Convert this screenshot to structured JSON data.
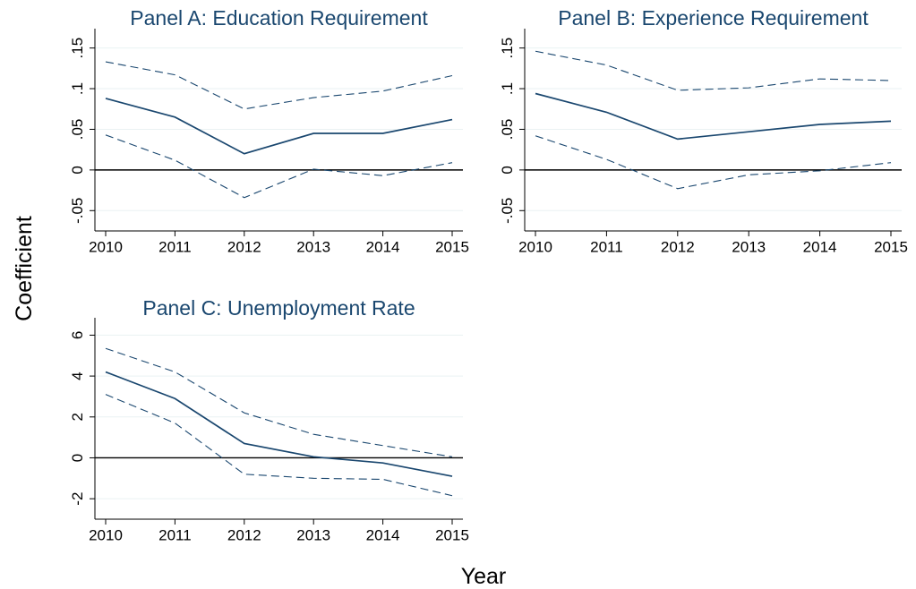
{
  "y_label": "Coefficient",
  "x_label": "Year",
  "chart_data": [
    {
      "type": "line",
      "title": "Panel A: Education Requirement",
      "x": [
        2010,
        2011,
        2012,
        2013,
        2014,
        2015
      ],
      "series": [
        {
          "color": "#1a476f",
          "style": "solid",
          "values": [
            0.088,
            0.065,
            0.02,
            0.045,
            0.045,
            0.062
          ]
        },
        {
          "color": "#1a476f",
          "style": "dashed",
          "values": [
            0.133,
            0.117,
            0.075,
            0.089,
            0.097,
            0.116
          ]
        },
        {
          "color": "#1a476f",
          "style": "dashed",
          "values": [
            0.043,
            0.012,
            -0.034,
            0.001,
            -0.007,
            0.009
          ]
        }
      ],
      "xlim": [
        2010,
        2015
      ],
      "xticks": [
        2010,
        2011,
        2012,
        2013,
        2014,
        2015
      ],
      "ylim": [
        -0.075,
        0.165
      ],
      "yticks": [
        {
          "value": -0.05,
          "label": "-.05"
        },
        0,
        {
          "value": 0.05,
          "label": ".05"
        },
        {
          "value": 0.1,
          "label": ".1"
        },
        {
          "value": 0.15,
          "label": ".15"
        }
      ],
      "reference_line": 0,
      "grid": true
    },
    {
      "type": "line",
      "title": "Panel B: Experience Requirement",
      "x": [
        2010,
        2011,
        2012,
        2013,
        2014,
        2015
      ],
      "series": [
        {
          "color": "#1a476f",
          "style": "solid",
          "values": [
            0.094,
            0.071,
            0.038,
            0.047,
            0.056,
            0.06
          ]
        },
        {
          "color": "#1a476f",
          "style": "dashed",
          "values": [
            0.146,
            0.129,
            0.098,
            0.101,
            0.112,
            0.11
          ]
        },
        {
          "color": "#1a476f",
          "style": "dashed",
          "values": [
            0.042,
            0.013,
            -0.023,
            -0.006,
            -0.001,
            0.009
          ]
        }
      ],
      "xlim": [
        2010,
        2015
      ],
      "xticks": [
        2010,
        2011,
        2012,
        2013,
        2014,
        2015
      ],
      "ylim": [
        -0.075,
        0.165
      ],
      "yticks": [
        {
          "value": -0.05,
          "label": "-.05"
        },
        0,
        {
          "value": 0.05,
          "label": ".05"
        },
        {
          "value": 0.1,
          "label": ".1"
        },
        {
          "value": 0.15,
          "label": ".15"
        }
      ],
      "reference_line": 0,
      "grid": true
    },
    {
      "type": "line",
      "title": "Panel C: Unemployment Rate",
      "x": [
        2010,
        2011,
        2012,
        2013,
        2014,
        2015
      ],
      "series": [
        {
          "color": "#1a476f",
          "style": "solid",
          "values": [
            4.2,
            2.9,
            0.7,
            0.05,
            -0.25,
            -0.9
          ]
        },
        {
          "color": "#1a476f",
          "style": "dashed",
          "values": [
            5.35,
            4.2,
            2.2,
            1.15,
            0.6,
            0.05
          ]
        },
        {
          "color": "#1a476f",
          "style": "dashed",
          "values": [
            3.1,
            1.7,
            -0.8,
            -1.0,
            -1.05,
            -1.85
          ]
        }
      ],
      "xlim": [
        2010,
        2015
      ],
      "xticks": [
        2010,
        2011,
        2012,
        2013,
        2014,
        2015
      ],
      "ylim": [
        -3,
        6.5
      ],
      "yticks": [
        -2,
        0,
        2,
        4,
        6
      ],
      "reference_line": 0,
      "grid": true
    }
  ]
}
